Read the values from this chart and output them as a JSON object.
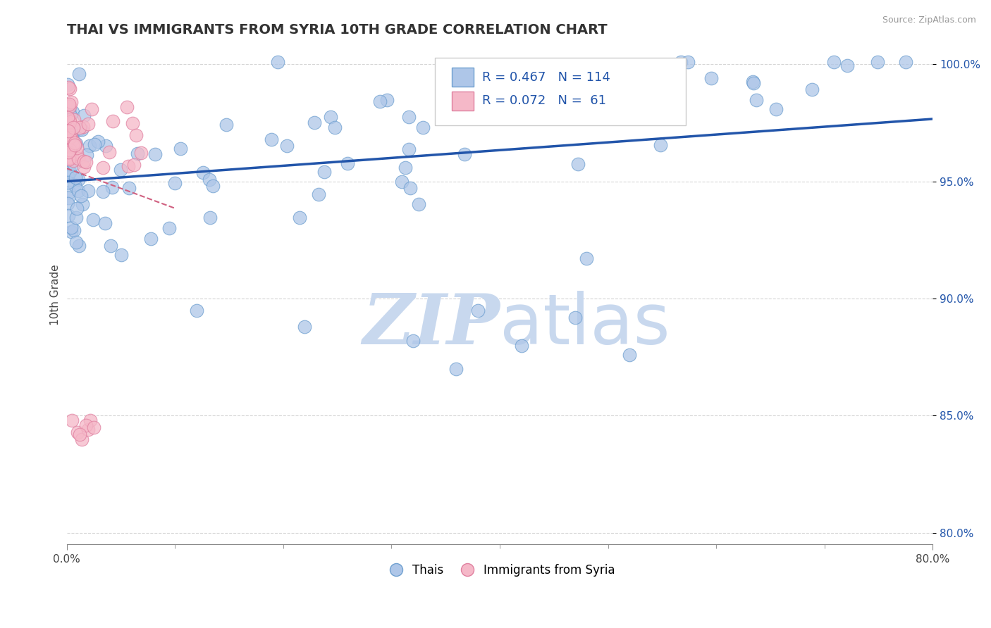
{
  "title": "THAI VS IMMIGRANTS FROM SYRIA 10TH GRADE CORRELATION CHART",
  "source": "Source: ZipAtlas.com",
  "ylabel": "10th Grade",
  "xmin": 0.0,
  "xmax": 0.8,
  "ymin": 0.795,
  "ymax": 1.008,
  "yticks": [
    0.8,
    0.85,
    0.9,
    0.95,
    1.0
  ],
  "ytick_labels": [
    "80.0%",
    "85.0%",
    "90.0%",
    "95.0%",
    "100.0%"
  ],
  "blue_R": 0.467,
  "blue_N": 114,
  "pink_R": 0.072,
  "pink_N": 61,
  "blue_color": "#AEC6E8",
  "blue_edge": "#6FA0D0",
  "blue_line_color": "#2255AA",
  "pink_color": "#F5B8C8",
  "pink_edge": "#E080A0",
  "pink_line_color": "#D06080",
  "watermark_zip": "ZIP",
  "watermark_atlas": "atlas",
  "watermark_color": "#C8D8EE",
  "blue_label": "Thais",
  "pink_label": "Immigrants from Syria",
  "legend_color": "#2255AA"
}
